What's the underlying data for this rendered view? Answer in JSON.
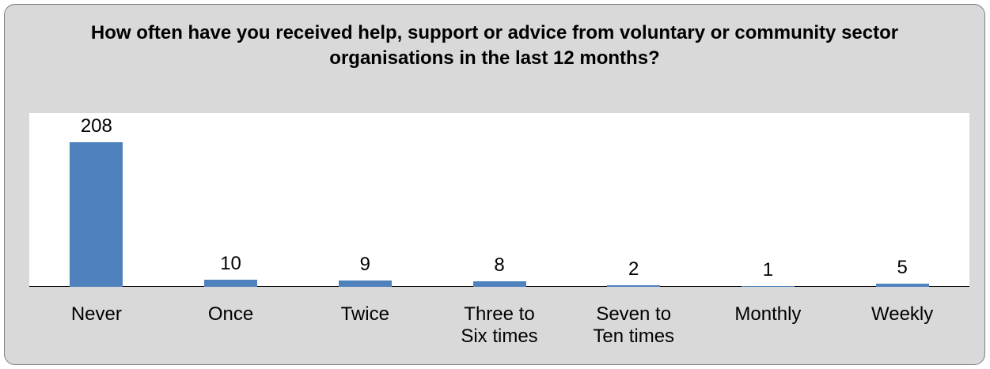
{
  "chart_data": {
    "type": "bar",
    "title": "How often have you received help, support or advice from voluntary or community sector organisations in the last 12 months?",
    "categories": [
      "Never",
      "Once",
      "Twice",
      "Three to Six times",
      "Seven to Ten times",
      "Monthly",
      "Weekly"
    ],
    "values": [
      208,
      10,
      9,
      8,
      2,
      1,
      5
    ],
    "color": "#4f81bd"
  }
}
